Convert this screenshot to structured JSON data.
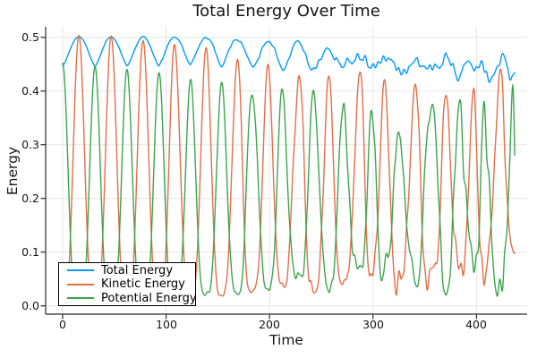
{
  "figure": {
    "background": "#ffffff"
  },
  "colors": {
    "grid": "#e5e5e5",
    "spine": "#2b2b2b",
    "tick_label": "#151515",
    "legend_border": "#000000",
    "legend_background": "#ffffff"
  },
  "chart_data": {
    "type": "line",
    "title": "Total Energy Over Time",
    "xlabel": "Time",
    "ylabel": "Energy",
    "xlim": [
      -16.4,
      449
    ],
    "ylim": [
      -0.0155,
      0.5195
    ],
    "grid": true,
    "legend_position": "bottom-left",
    "xticks": {
      "values": [
        0,
        100,
        200,
        300,
        400
      ],
      "labels": [
        "0",
        "100",
        "200",
        "300",
        "400"
      ]
    },
    "yticks": {
      "values": [
        0.0,
        0.1,
        0.2,
        0.3,
        0.4,
        0.5
      ],
      "labels": [
        "0.0",
        "0.1",
        "0.2",
        "0.3",
        "0.4",
        "0.5"
      ]
    },
    "t_range": [
      0,
      437,
      0.5
    ],
    "period_env": [
      [
        0,
        31.5
      ],
      [
        250,
        29
      ],
      [
        437,
        26
      ]
    ],
    "series": [
      {
        "name": "Total Energy",
        "color": "#009AFA",
        "mode": "band",
        "pow": 0.7,
        "top_env": [
          [
            0,
            0.501
          ],
          [
            150,
            0.5
          ],
          [
            220,
            0.49
          ],
          [
            270,
            0.476
          ],
          [
            320,
            0.466
          ],
          [
            437,
            0.458
          ]
        ],
        "bot_env": [
          [
            0,
            0.447
          ],
          [
            150,
            0.447
          ],
          [
            220,
            0.443
          ],
          [
            270,
            0.439
          ],
          [
            320,
            0.434
          ],
          [
            437,
            0.429
          ]
        ],
        "noise_env": [
          [
            0,
            0
          ],
          [
            150,
            0.003
          ],
          [
            230,
            0.008
          ],
          [
            300,
            0.016
          ],
          [
            437,
            0.022
          ]
        ],
        "jitter_env": [
          [
            0,
            0
          ],
          [
            150,
            0.08
          ],
          [
            230,
            0.3
          ],
          [
            300,
            0.6
          ],
          [
            437,
            1.1
          ]
        ],
        "jitter_seed": 11,
        "noise_seed": 12,
        "antiphase": false,
        "clamp": [
          0.0,
          0.504
        ]
      },
      {
        "name": "Kinetic Energy",
        "color": "#E36F47",
        "mode": "bump",
        "pow": 1.8,
        "peak_env": [
          [
            0,
            0.505
          ],
          [
            60,
            0.502
          ],
          [
            110,
            0.487
          ],
          [
            160,
            0.468
          ],
          [
            210,
            0.452
          ],
          [
            260,
            0.438
          ],
          [
            310,
            0.422
          ],
          [
            370,
            0.41
          ],
          [
            437,
            0.415
          ]
        ],
        "floor_env": [
          [
            0,
            0.001
          ],
          [
            120,
            0.008
          ],
          [
            200,
            0.03
          ],
          [
            280,
            0.05
          ],
          [
            360,
            0.065
          ],
          [
            437,
            0.075
          ]
        ],
        "noise_env": [
          [
            0,
            0
          ],
          [
            120,
            0.004
          ],
          [
            200,
            0.014
          ],
          [
            270,
            0.028
          ],
          [
            330,
            0.045
          ],
          [
            437,
            0.055
          ]
        ],
        "jitter_env": [
          [
            0,
            0
          ],
          [
            140,
            0.08
          ],
          [
            220,
            0.3
          ],
          [
            300,
            0.7
          ],
          [
            360,
            1.1
          ],
          [
            437,
            1.5
          ]
        ],
        "jitter_seed": 21,
        "noise_seed": 22,
        "antiphase": false,
        "clamp": [
          0.002,
          0.51
        ]
      },
      {
        "name": "Potential Energy",
        "color": "#3EA44E",
        "mode": "bump",
        "pow": 2.0,
        "peak_env": [
          [
            0,
            0.452
          ],
          [
            60,
            0.442
          ],
          [
            110,
            0.428
          ],
          [
            160,
            0.41
          ],
          [
            210,
            0.397
          ],
          [
            260,
            0.38
          ],
          [
            310,
            0.362
          ],
          [
            370,
            0.365
          ],
          [
            437,
            0.375
          ]
        ],
        "floor_env": [
          [
            0,
            0.001
          ],
          [
            120,
            0.012
          ],
          [
            200,
            0.035
          ],
          [
            280,
            0.055
          ],
          [
            360,
            0.072
          ],
          [
            437,
            0.085
          ]
        ],
        "noise_env": [
          [
            0,
            0
          ],
          [
            120,
            0.004
          ],
          [
            200,
            0.014
          ],
          [
            270,
            0.028
          ],
          [
            330,
            0.045
          ],
          [
            437,
            0.055
          ]
        ],
        "jitter_env": [
          [
            0,
            0
          ],
          [
            140,
            0.08
          ],
          [
            220,
            0.3
          ],
          [
            300,
            0.7
          ],
          [
            360,
            1.1
          ],
          [
            437,
            1.5
          ]
        ],
        "jitter_seed": 21,
        "noise_seed": 23,
        "antiphase": true,
        "clamp": [
          0.002,
          0.51
        ]
      }
    ]
  }
}
